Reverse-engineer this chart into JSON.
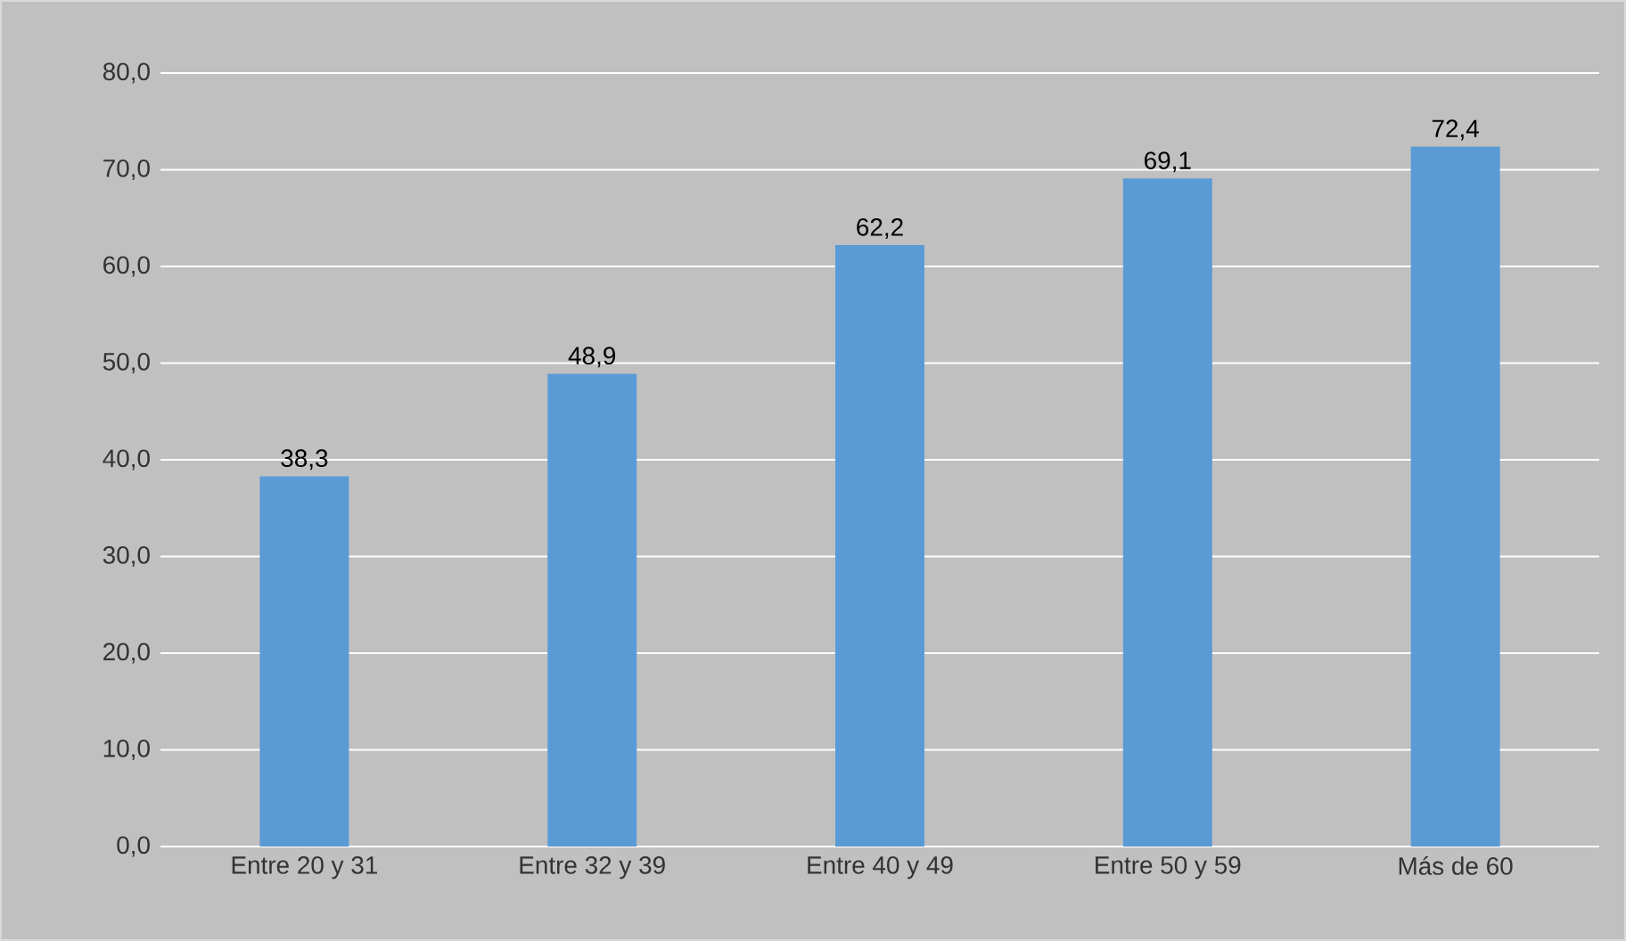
{
  "chart_data": {
    "type": "bar",
    "categories": [
      "Entre 20 y 31",
      "Entre 32 y 39",
      "Entre 40 y 49",
      "Entre 50 y 59",
      "Más de 60"
    ],
    "values": [
      38.3,
      48.9,
      62.2,
      69.1,
      72.4
    ],
    "value_labels": [
      "38,3",
      "48,9",
      "62,2",
      "69,1",
      "72,4"
    ],
    "color": "#5b9bd5",
    "ylim": [
      0,
      80
    ],
    "yticks": [
      {
        "value": 0,
        "label": "0,0"
      },
      {
        "value": 10,
        "label": "10,0"
      },
      {
        "value": 20,
        "label": "20,0"
      },
      {
        "value": 30,
        "label": "30,0"
      },
      {
        "value": 40,
        "label": "40,0"
      },
      {
        "value": 50,
        "label": "50,0"
      },
      {
        "value": 60,
        "label": "60,0"
      },
      {
        "value": 70,
        "label": "70,0"
      },
      {
        "value": 80,
        "label": "80,0"
      }
    ],
    "grid": "y"
  }
}
